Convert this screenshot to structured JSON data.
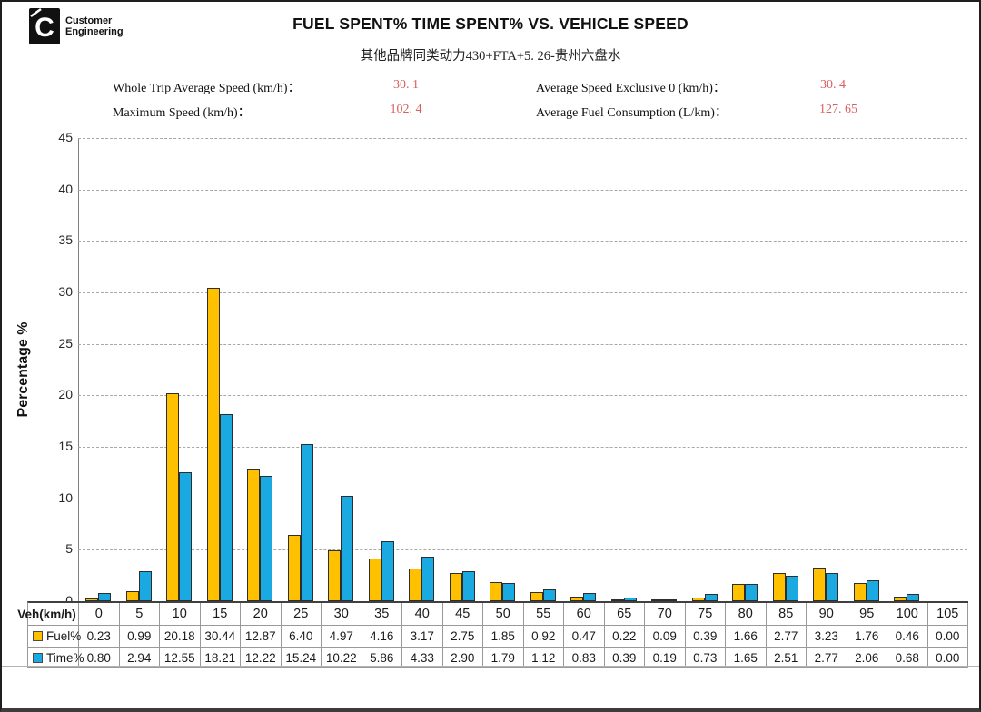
{
  "header": {
    "logo_line1": "Customer",
    "logo_line2": "Engineering",
    "title": "FUEL SPENT% TIME SPENT% VS. VEHICLE SPEED",
    "subtitle": "其他品牌同类动力430+FTA+5. 26-贵州六盘水"
  },
  "stats": {
    "whole_trip_avg_speed": {
      "label": "Whole Trip Average Speed (km/h)：",
      "value": "30. 1"
    },
    "max_speed": {
      "label": "Maximum Speed (km/h)：",
      "value": "102. 4"
    },
    "avg_speed_exclusive_0": {
      "label": "Average Speed Exclusive 0 (km/h)：",
      "value": "30. 4"
    },
    "avg_fuel_consumption": {
      "label": "Average Fuel Consumption (L/km)：",
      "value": "127. 65"
    }
  },
  "colors": {
    "stat_value_red": "#d95f5f",
    "fuel_bar": "#FFC000",
    "time_bar": "#1BA9E1",
    "gridline": "#a8a8a8",
    "table_border": "#999999"
  },
  "chart_data": {
    "type": "bar",
    "title": "FUEL SPENT% TIME SPENT% VS. VEHICLE SPEED",
    "xlabel": "Veh(km/h)",
    "ylabel": "Percentage %",
    "ylim": [
      0,
      45
    ],
    "ytick_step": 5,
    "grid": "horizontal-dashed",
    "legend_position": "table-left-column",
    "categories": [
      0,
      5,
      10,
      15,
      20,
      25,
      30,
      35,
      40,
      45,
      50,
      55,
      60,
      65,
      70,
      75,
      80,
      85,
      90,
      95,
      100,
      105
    ],
    "series": [
      {
        "name": "Fuel%",
        "color": "#FFC000",
        "values": [
          0.23,
          0.99,
          20.18,
          30.44,
          12.87,
          6.4,
          4.97,
          4.16,
          3.17,
          2.75,
          1.85,
          0.92,
          0.47,
          0.22,
          0.09,
          0.39,
          1.66,
          2.77,
          3.23,
          1.76,
          0.46,
          0.0
        ]
      },
      {
        "name": "Time%",
        "color": "#1BA9E1",
        "values": [
          0.8,
          2.94,
          12.55,
          18.21,
          12.22,
          15.24,
          10.22,
          5.86,
          4.33,
          2.9,
          1.79,
          1.12,
          0.83,
          0.39,
          0.19,
          0.73,
          1.65,
          2.51,
          2.77,
          2.06,
          0.68,
          0.0
        ]
      }
    ]
  }
}
